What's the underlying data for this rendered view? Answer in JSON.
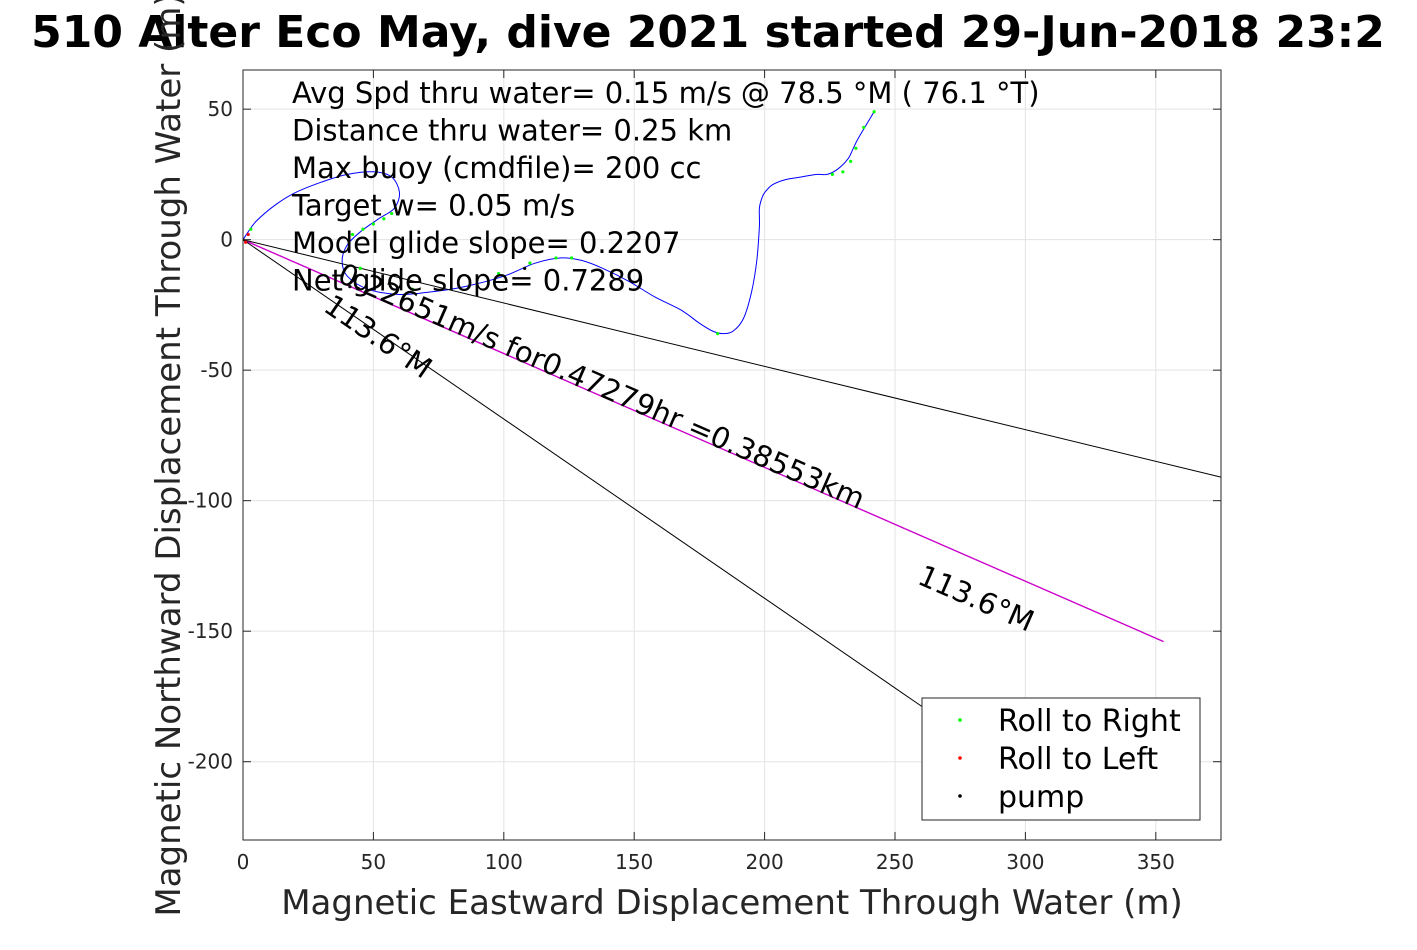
{
  "chart_data": {
    "type": "line",
    "title": "510 Alter Eco May, dive 2021 started 29-Jun-2018 23:2",
    "xlabel": "Magnetic Eastward Displacement Through Water (m)",
    "ylabel": "Magnetic Northward Displacement Through Water (m)",
    "xlim": [
      0,
      375
    ],
    "ylim": [
      -230,
      65
    ],
    "xticks": [
      0,
      50,
      100,
      150,
      200,
      250,
      300,
      350
    ],
    "yticks": [
      50,
      0,
      -50,
      -100,
      -150,
      -200
    ],
    "grid": true,
    "legend_location": "bottom-right",
    "colors": {
      "track": "#0000ff",
      "roll_right": "#00ff00",
      "roll_left": "#ff0000",
      "pump": "#000000",
      "net_line": "#cc00cc",
      "guide_lines": "#000000"
    },
    "text_block": [
      "Avg Spd thru water=  0.15 m/s @  78.5 °M ( 76.1 °T)",
      "Distance thru water=  0.25 km",
      "Max buoy (cmdfile)= 200 cc",
      "Target w= 0.05 m/s",
      "Model glide slope= 0.2207",
      "Net glide slope= 0.7289"
    ],
    "annotations": {
      "current": "0.22651m/s for0.47279hr =0.38553km",
      "heading_near": "113.6°M",
      "heading_far": "113.6°M"
    },
    "legend": [
      {
        "label": "Roll to Right",
        "color": "#00ff00"
      },
      {
        "label": "Roll to Left",
        "color": "#ff0000"
      },
      {
        "label": "pump",
        "color": "#000000"
      }
    ],
    "series": [
      {
        "x": [
          0,
          2,
          5,
          12,
          20,
          30,
          40,
          50,
          57,
          60,
          58,
          52,
          45,
          40,
          38,
          40,
          48,
          60,
          72,
          85,
          100,
          112,
          122,
          130,
          138,
          148,
          158,
          168,
          175,
          180,
          184,
          188,
          192,
          195,
          197,
          198,
          198,
          199,
          200,
          203,
          208,
          214,
          220,
          224,
          228,
          232,
          234,
          236,
          239,
          242
        ],
        "y": [
          0,
          3,
          7,
          13,
          18,
          22,
          25,
          26,
          24,
          18,
          12,
          8,
          3,
          -2,
          -8,
          -14,
          -19,
          -21,
          -20,
          -18,
          -14,
          -9,
          -7,
          -8,
          -11,
          -16,
          -22,
          -27,
          -32,
          -35,
          -36,
          -35,
          -30,
          -20,
          -8,
          5,
          12,
          16,
          18,
          21,
          23,
          24,
          25,
          25,
          27,
          31,
          35,
          39,
          44,
          49
        ]
      },
      {
        "x": [
          0,
          353
        ],
        "y": [
          0,
          -154
        ]
      },
      {
        "x": [
          0,
          375
        ],
        "y": [
          0,
          -91
        ]
      },
      {
        "x": [
          0,
          262
        ],
        "y": [
          0,
          -180
        ]
      }
    ],
    "markers": {
      "roll_right": {
        "x": [
          3,
          42,
          46,
          50,
          54,
          57,
          45,
          43,
          65,
          98,
          110,
          120,
          126,
          182,
          226,
          230,
          233,
          235,
          238,
          242
        ],
        "y": [
          4,
          2,
          4,
          6,
          8,
          10,
          -11,
          -15,
          -19,
          -13,
          -9,
          -7,
          -7,
          -36,
          25,
          26,
          30,
          35,
          43,
          49
        ]
      },
      "roll_left": {
        "x": [
          1,
          2
        ],
        "y": [
          -1,
          2
        ]
      },
      "pump": {
        "x": [
          0,
          41,
          108
        ],
        "y": [
          0,
          -18,
          -11
        ]
      }
    }
  }
}
